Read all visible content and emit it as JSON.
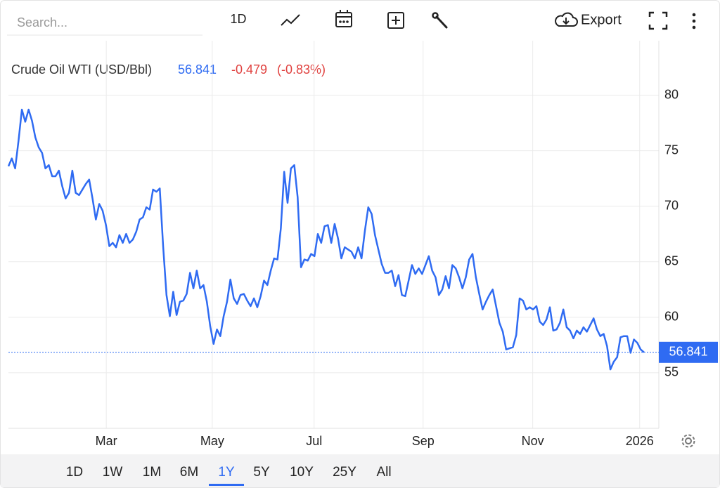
{
  "toolbar": {
    "search_placeholder": "Search...",
    "interval": "1D",
    "export": "Export"
  },
  "header": {
    "change": "-0.479",
    "change_percent": "(-0.83%)"
  },
  "chart_data": {
    "type": "line",
    "series": [
      {
        "name": "Crude Oil WTI (USD/Bbl)",
        "color": "#2f6bf2",
        "values": [
          73.6,
          74.3,
          73.4,
          75.9,
          78.7,
          77.6,
          78.7,
          77.7,
          76.2,
          75.3,
          74.8,
          73.4,
          73.7,
          72.7,
          72.7,
          73.2,
          71.8,
          70.7,
          71.2,
          73.2,
          71.2,
          71.0,
          71.5,
          72.0,
          72.4,
          70.7,
          68.8,
          70.2,
          69.6,
          68.3,
          66.4,
          66.7,
          66.3,
          67.4,
          66.7,
          67.5,
          66.7,
          67.0,
          67.7,
          68.8,
          69.0,
          69.9,
          69.7,
          71.5,
          71.3,
          71.6,
          66.4,
          62.0,
          60.1,
          62.3,
          60.2,
          61.4,
          61.5,
          62.1,
          64.0,
          62.6,
          64.2,
          62.6,
          62.9,
          61.4,
          59.2,
          57.6,
          58.9,
          58.3,
          60.1,
          61.4,
          63.4,
          61.7,
          61.2,
          62.0,
          62.1,
          61.5,
          61.0,
          61.7,
          60.9,
          61.9,
          63.3,
          62.9,
          64.2,
          65.3,
          65.2,
          68.0,
          73.1,
          70.3,
          73.4,
          73.7,
          70.8,
          64.5,
          65.2,
          65.1,
          65.7,
          65.5,
          67.5,
          66.7,
          68.2,
          68.3,
          66.7,
          68.4,
          67.1,
          65.3,
          66.3,
          66.1,
          65.9,
          65.3,
          66.3,
          65.3,
          67.8,
          69.9,
          69.3,
          67.4,
          66.1,
          64.8,
          64.0,
          64.0,
          64.2,
          62.8,
          63.8,
          62.0,
          61.9,
          63.3,
          64.7,
          63.9,
          64.4,
          63.9,
          64.7,
          65.5,
          64.2,
          63.6,
          62.0,
          62.5,
          63.7,
          62.6,
          64.7,
          64.4,
          63.6,
          62.6,
          63.6,
          65.2,
          65.7,
          63.6,
          62.1,
          60.7,
          61.4,
          62.0,
          62.5,
          61.0,
          59.5,
          58.7,
          57.1,
          57.2,
          57.3,
          58.4,
          61.7,
          61.5,
          60.7,
          60.9,
          60.7,
          61.0,
          59.6,
          59.3,
          59.8,
          60.9,
          58.8,
          58.9,
          59.5,
          60.7,
          59.1,
          58.8,
          58.1,
          58.8,
          58.5,
          59.1,
          58.7,
          59.3,
          59.9,
          58.9,
          58.3,
          58.5,
          57.4,
          55.3,
          56.0,
          56.4,
          58.2,
          58.3,
          58.3,
          56.8,
          58.0,
          57.7,
          57.1,
          56.841
        ]
      }
    ],
    "xlim": [
      0,
      193.4
    ],
    "xticks": [
      {
        "value": 29.1,
        "label": "Mar"
      },
      {
        "value": 60.6,
        "label": "May"
      },
      {
        "value": 90.9,
        "label": "Jul"
      },
      {
        "value": 123.3,
        "label": "Sep"
      },
      {
        "value": 155.9,
        "label": "Nov"
      },
      {
        "value": 187.7,
        "label": "2026"
      }
    ],
    "ylim": [
      50,
      84.9
    ],
    "yticks": [
      55,
      60,
      65,
      70,
      75,
      80
    ],
    "grid": true
  },
  "range_buttons": [
    "1D",
    "1W",
    "1M",
    "6M",
    "1Y",
    "5Y",
    "10Y",
    "25Y",
    "All"
  ],
  "selected_range": "1Y"
}
